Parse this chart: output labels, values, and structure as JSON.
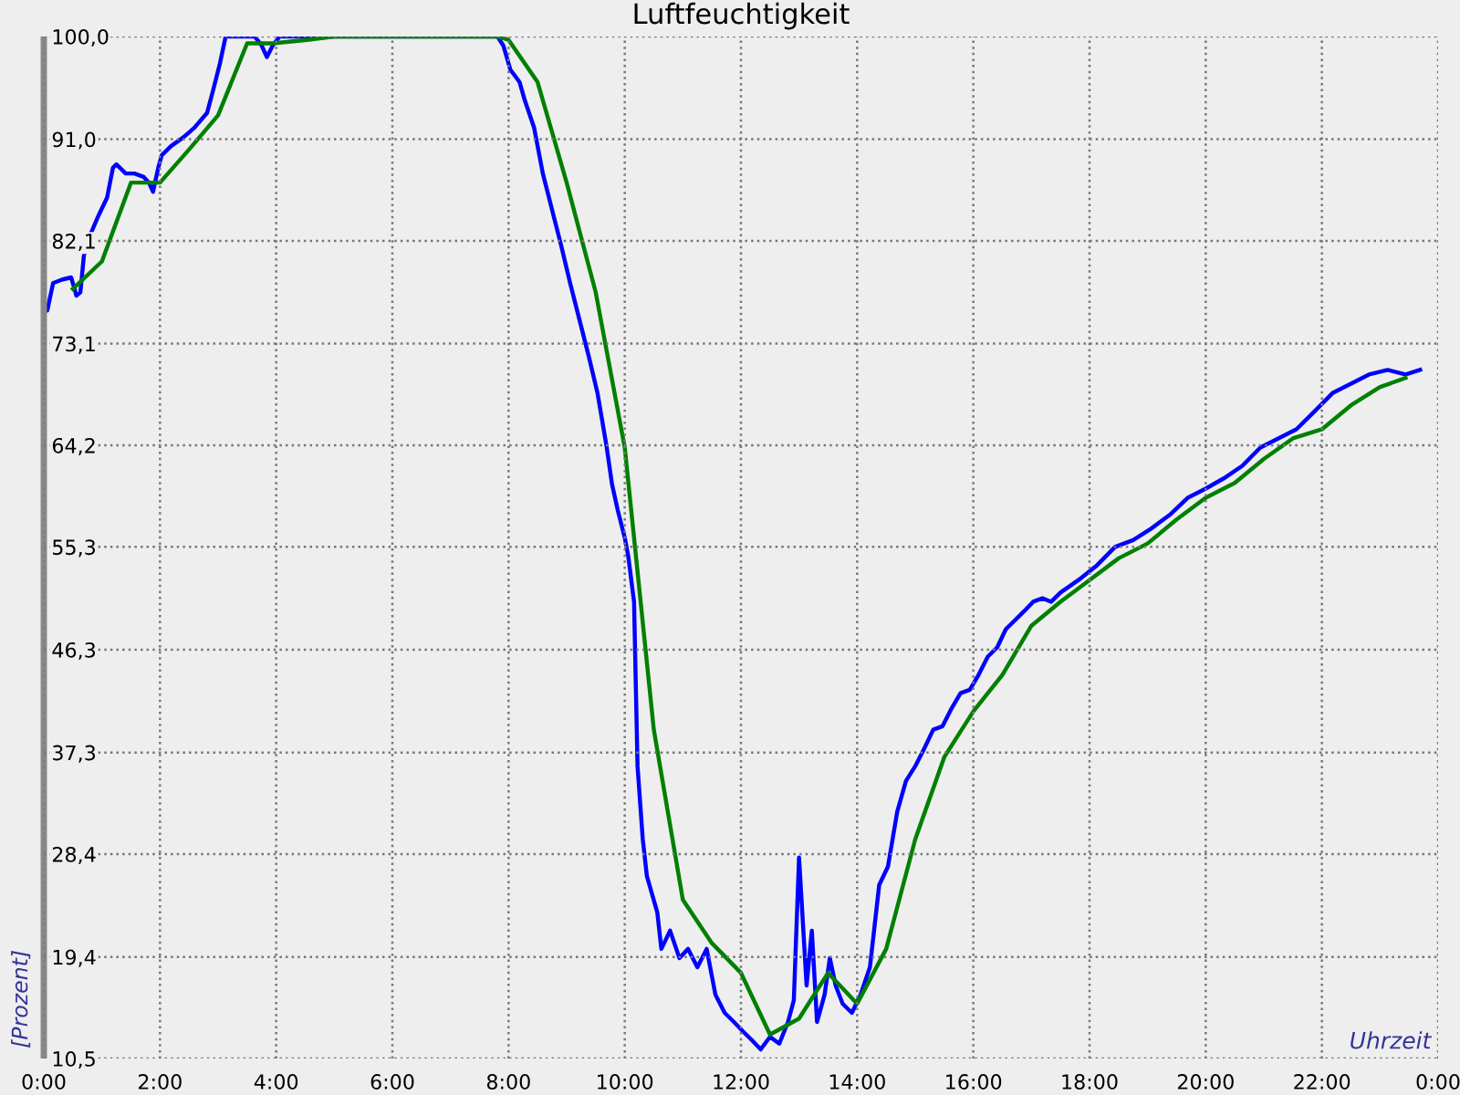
{
  "chart_data": {
    "type": "line",
    "title": "Luftfeuchtigkeit",
    "xlabel": "Uhrzeit",
    "ylabel": "[Prozent]",
    "xlim": [
      0,
      24
    ],
    "xticks": [
      {
        "value": 0,
        "label": "0:00"
      },
      {
        "value": 2,
        "label": "2:00"
      },
      {
        "value": 4,
        "label": "4:00"
      },
      {
        "value": 6,
        "label": "6:00"
      },
      {
        "value": 8,
        "label": "8:00"
      },
      {
        "value": 10,
        "label": "10:00"
      },
      {
        "value": 12,
        "label": "12:00"
      },
      {
        "value": 14,
        "label": "14:00"
      },
      {
        "value": 16,
        "label": "16:00"
      },
      {
        "value": 18,
        "label": "18:00"
      },
      {
        "value": 20,
        "label": "20:00"
      },
      {
        "value": 22,
        "label": "22:00"
      },
      {
        "value": 24,
        "label": "0:00"
      }
    ],
    "ylim": [
      10.5,
      100
    ],
    "yticks": [
      {
        "value": 10.5,
        "label": "10,5"
      },
      {
        "value": 19.4,
        "label": "19,4"
      },
      {
        "value": 28.4,
        "label": "28,4"
      },
      {
        "value": 37.3,
        "label": "37,3"
      },
      {
        "value": 46.3,
        "label": "46,3"
      },
      {
        "value": 55.3,
        "label": "55,3"
      },
      {
        "value": 64.2,
        "label": "64,2"
      },
      {
        "value": 73.1,
        "label": "73,1"
      },
      {
        "value": 82.1,
        "label": "82,1"
      },
      {
        "value": 91.0,
        "label": "91,0"
      },
      {
        "value": 100.0,
        "label": "100,0"
      }
    ],
    "grid": true,
    "line_style": "solid",
    "series": [
      {
        "color": "#0000ff",
        "x": [
          0,
          0.06,
          0.16,
          0.31,
          0.47,
          0.53,
          0.56,
          0.63,
          0.69,
          0.78,
          0.94,
          1.09,
          1.19,
          1.25,
          1.41,
          1.56,
          1.72,
          1.81,
          1.88,
          1.97,
          2.03,
          2.19,
          2.41,
          2.59,
          2.81,
          2.91,
          3.03,
          3.13,
          3.63,
          3.75,
          3.84,
          3.94,
          4.06,
          7.81,
          7.91,
          8.03,
          8.19,
          8.28,
          8.44,
          8.59,
          8.75,
          8.91,
          9.06,
          9.22,
          9.38,
          9.53,
          9.69,
          9.78,
          9.88,
          10.0,
          10.06,
          10.16,
          10.22,
          10.31,
          10.38,
          10.47,
          10.56,
          10.63,
          10.78,
          10.94,
          11.09,
          11.25,
          11.41,
          11.56,
          11.72,
          11.88,
          12.03,
          12.19,
          12.34,
          12.5,
          12.66,
          12.81,
          12.91,
          13.0,
          13.13,
          13.22,
          13.31,
          13.44,
          13.53,
          13.63,
          13.75,
          13.91,
          14.06,
          14.22,
          14.38,
          14.53,
          14.69,
          14.84,
          15.0,
          15.16,
          15.31,
          15.47,
          15.63,
          15.78,
          15.94,
          16.09,
          16.25,
          16.41,
          16.56,
          16.72,
          16.88,
          17.03,
          17.19,
          17.34,
          17.5,
          17.81,
          18.13,
          18.44,
          18.75,
          19.06,
          19.38,
          19.69,
          20.0,
          20.31,
          20.63,
          20.94,
          21.25,
          21.56,
          21.88,
          22.19,
          22.5,
          22.81,
          23.13,
          23.44,
          23.69
        ],
        "values": [
          76.3,
          76.0,
          78.4,
          78.7,
          78.9,
          77.9,
          77.3,
          77.6,
          80.8,
          82.4,
          84.3,
          85.9,
          88.5,
          88.8,
          88.0,
          88.0,
          87.7,
          87.2,
          86.4,
          88.5,
          89.6,
          90.4,
          91.2,
          92.0,
          93.3,
          95.2,
          97.6,
          100.0,
          100.0,
          99.2,
          98.2,
          99.2,
          100.0,
          100.0,
          99.2,
          97.1,
          96.0,
          94.4,
          92.0,
          88.0,
          84.8,
          81.6,
          78.4,
          75.2,
          72.0,
          68.8,
          64.0,
          60.8,
          58.5,
          56.1,
          54.5,
          50.5,
          36.1,
          29.7,
          26.5,
          24.9,
          23.3,
          20.1,
          21.7,
          19.3,
          20.1,
          18.5,
          20.1,
          16.1,
          14.5,
          13.7,
          12.9,
          12.1,
          11.3,
          12.4,
          11.8,
          13.7,
          15.6,
          28.1,
          16.9,
          21.7,
          13.7,
          16.1,
          19.3,
          16.9,
          15.3,
          14.5,
          16.1,
          18.5,
          25.7,
          27.3,
          32.1,
          34.8,
          36.1,
          37.7,
          39.3,
          39.6,
          41.2,
          42.5,
          42.8,
          44.1,
          45.7,
          46.5,
          48.1,
          48.9,
          49.7,
          50.5,
          50.8,
          50.5,
          51.3,
          52.4,
          53.7,
          55.3,
          55.9,
          56.9,
          58.1,
          59.6,
          60.4,
          61.3,
          62.4,
          64.0,
          64.8,
          65.6,
          67.2,
          68.8,
          69.6,
          70.4,
          70.8,
          70.4,
          70.8
        ]
      },
      {
        "color": "#008000",
        "x": [
          0.5,
          1.0,
          1.5,
          2.0,
          2.5,
          3.0,
          3.5,
          3.94,
          4.53,
          5.0,
          7.81,
          8.0,
          8.5,
          9.0,
          9.5,
          10.0,
          10.5,
          11.0,
          11.5,
          12.0,
          12.5,
          13.0,
          13.5,
          14.0,
          14.5,
          15.0,
          15.5,
          16.0,
          16.5,
          17.0,
          17.5,
          18.0,
          18.5,
          19.0,
          19.5,
          20.0,
          20.5,
          21.0,
          21.5,
          22.0,
          22.5,
          23.0,
          23.44
        ],
        "values": [
          77.9,
          80.3,
          87.2,
          87.2,
          90.1,
          93.1,
          99.4,
          99.4,
          99.7,
          100.0,
          100.0,
          99.7,
          96.0,
          87.2,
          77.6,
          64.0,
          39.3,
          24.4,
          20.6,
          18.0,
          12.6,
          14.0,
          18.0,
          15.3,
          20.1,
          29.7,
          36.9,
          40.9,
          44.1,
          48.4,
          50.5,
          52.4,
          54.3,
          55.6,
          57.7,
          59.6,
          60.9,
          63.0,
          64.8,
          65.6,
          67.7,
          69.3,
          70.1
        ]
      }
    ]
  }
}
